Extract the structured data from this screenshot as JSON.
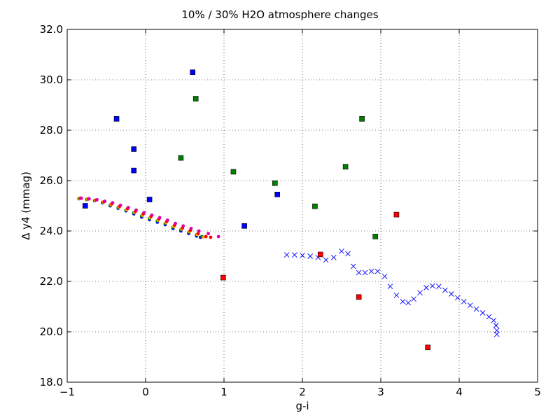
{
  "chart_data": {
    "type": "scatter",
    "title": "10% / 30% H2O atmosphere changes",
    "xlabel": "g-i",
    "ylabel": "Δ y4 (mmag)",
    "xlim": [
      -1,
      5
    ],
    "ylim": [
      18.0,
      32.0
    ],
    "x_ticks": [
      "−1",
      "0",
      "1",
      "2",
      "3",
      "4",
      "5"
    ],
    "y_ticks": [
      "18.0",
      "20.0",
      "22.0",
      "24.0",
      "26.0",
      "28.0",
      "30.0",
      "32.0"
    ],
    "grid": true,
    "legend": "none",
    "series": [
      {
        "marker": "square",
        "color": "#0000ff",
        "points": [
          [
            -0.77,
            25.0
          ],
          [
            -0.37,
            28.45
          ],
          [
            -0.15,
            27.25
          ],
          [
            -0.15,
            26.4
          ],
          [
            0.05,
            25.25
          ],
          [
            0.6,
            30.3
          ],
          [
            1.26,
            24.2
          ],
          [
            1.68,
            25.45
          ]
        ]
      },
      {
        "marker": "square",
        "color": "#008000",
        "points": [
          [
            0.45,
            26.9
          ],
          [
            0.64,
            29.25
          ],
          [
            1.12,
            26.35
          ],
          [
            1.65,
            25.9
          ],
          [
            2.16,
            24.98
          ],
          [
            2.55,
            26.55
          ],
          [
            2.76,
            28.45
          ],
          [
            2.93,
            23.78
          ]
        ]
      },
      {
        "marker": "square",
        "color": "#ff0000",
        "points": [
          [
            0.99,
            22.15
          ],
          [
            2.23,
            23.07
          ],
          [
            2.72,
            21.38
          ],
          [
            3.2,
            24.65
          ],
          [
            3.6,
            19.38
          ]
        ]
      },
      {
        "marker": "dot",
        "color": "#0000ff",
        "points": [
          [
            -0.85,
            25.28
          ],
          [
            -0.75,
            25.25
          ],
          [
            -0.65,
            25.2
          ],
          [
            -0.55,
            25.12
          ],
          [
            -0.45,
            25.0
          ],
          [
            -0.35,
            24.9
          ],
          [
            -0.25,
            24.8
          ],
          [
            -0.15,
            24.68
          ],
          [
            -0.05,
            24.55
          ],
          [
            0.05,
            24.45
          ],
          [
            0.15,
            24.35
          ],
          [
            0.25,
            24.25
          ],
          [
            0.35,
            24.1
          ],
          [
            0.45,
            24.0
          ],
          [
            0.55,
            23.9
          ],
          [
            0.65,
            23.8
          ],
          [
            0.7,
            23.75
          ]
        ]
      },
      {
        "marker": "dot",
        "color": "#008000",
        "points": [
          [
            -0.85,
            25.29
          ],
          [
            -0.75,
            25.26
          ],
          [
            -0.65,
            25.21
          ],
          [
            -0.55,
            25.14
          ],
          [
            -0.45,
            25.03
          ],
          [
            -0.35,
            24.93
          ],
          [
            -0.25,
            24.83
          ],
          [
            -0.15,
            24.72
          ],
          [
            -0.05,
            24.6
          ],
          [
            0.05,
            24.5
          ],
          [
            0.15,
            24.4
          ],
          [
            0.25,
            24.3
          ],
          [
            0.35,
            24.15
          ],
          [
            0.45,
            24.05
          ],
          [
            0.55,
            23.95
          ],
          [
            0.65,
            23.85
          ],
          [
            0.72,
            23.78
          ]
        ]
      },
      {
        "marker": "dot",
        "color": "#ffaa00",
        "points": [
          [
            -0.84,
            25.29
          ],
          [
            -0.74,
            25.26
          ],
          [
            -0.64,
            25.22
          ],
          [
            -0.54,
            25.15
          ],
          [
            -0.44,
            25.05
          ],
          [
            -0.34,
            24.95
          ],
          [
            -0.24,
            24.85
          ],
          [
            -0.14,
            24.74
          ],
          [
            -0.04,
            24.63
          ],
          [
            0.06,
            24.53
          ],
          [
            0.16,
            24.43
          ],
          [
            0.26,
            24.33
          ],
          [
            0.36,
            24.18
          ],
          [
            0.46,
            24.08
          ],
          [
            0.56,
            23.98
          ],
          [
            0.66,
            23.86
          ],
          [
            0.74,
            23.76
          ]
        ]
      },
      {
        "marker": "dot",
        "color": "#ff0000",
        "points": [
          [
            -0.83,
            25.3
          ],
          [
            -0.73,
            25.27
          ],
          [
            -0.63,
            25.23
          ],
          [
            -0.53,
            25.16
          ],
          [
            -0.43,
            25.08
          ],
          [
            -0.33,
            24.98
          ],
          [
            -0.23,
            24.89
          ],
          [
            -0.13,
            24.78
          ],
          [
            -0.03,
            24.68
          ],
          [
            0.07,
            24.58
          ],
          [
            0.17,
            24.48
          ],
          [
            0.27,
            24.38
          ],
          [
            0.37,
            24.23
          ],
          [
            0.47,
            24.12
          ],
          [
            0.57,
            24.02
          ],
          [
            0.67,
            23.9
          ],
          [
            0.77,
            23.78
          ],
          [
            0.83,
            23.75
          ]
        ]
      },
      {
        "marker": "dot",
        "color": "#dd00aa",
        "points": [
          [
            -0.82,
            25.3
          ],
          [
            -0.72,
            25.28
          ],
          [
            -0.62,
            25.24
          ],
          [
            -0.52,
            25.18
          ],
          [
            -0.42,
            25.12
          ],
          [
            -0.32,
            25.02
          ],
          [
            -0.22,
            24.93
          ],
          [
            -0.12,
            24.83
          ],
          [
            -0.02,
            24.73
          ],
          [
            0.08,
            24.63
          ],
          [
            0.18,
            24.53
          ],
          [
            0.28,
            24.43
          ],
          [
            0.38,
            24.3
          ],
          [
            0.48,
            24.2
          ],
          [
            0.58,
            24.1
          ],
          [
            0.68,
            24.0
          ],
          [
            0.8,
            23.9
          ],
          [
            0.93,
            23.78
          ]
        ]
      },
      {
        "marker": "x",
        "color": "#0000ff",
        "points": [
          [
            1.8,
            23.05
          ],
          [
            1.9,
            23.05
          ],
          [
            2.0,
            23.03
          ],
          [
            2.1,
            23.0
          ],
          [
            2.2,
            22.95
          ],
          [
            2.3,
            22.85
          ],
          [
            2.4,
            22.95
          ],
          [
            2.5,
            23.2
          ],
          [
            2.58,
            23.1
          ],
          [
            2.65,
            22.6
          ],
          [
            2.72,
            22.35
          ],
          [
            2.8,
            22.35
          ],
          [
            2.88,
            22.4
          ],
          [
            2.96,
            22.4
          ],
          [
            3.05,
            22.2
          ],
          [
            3.12,
            21.8
          ],
          [
            3.2,
            21.45
          ],
          [
            3.28,
            21.2
          ],
          [
            3.35,
            21.15
          ],
          [
            3.42,
            21.3
          ],
          [
            3.5,
            21.55
          ],
          [
            3.58,
            21.75
          ],
          [
            3.66,
            21.82
          ],
          [
            3.74,
            21.8
          ],
          [
            3.82,
            21.65
          ],
          [
            3.9,
            21.5
          ],
          [
            3.98,
            21.35
          ],
          [
            4.06,
            21.2
          ],
          [
            4.14,
            21.05
          ],
          [
            4.22,
            20.9
          ],
          [
            4.3,
            20.75
          ],
          [
            4.38,
            20.6
          ],
          [
            4.44,
            20.45
          ],
          [
            4.47,
            20.25
          ],
          [
            4.48,
            20.05
          ],
          [
            4.48,
            19.9
          ]
        ]
      }
    ]
  }
}
